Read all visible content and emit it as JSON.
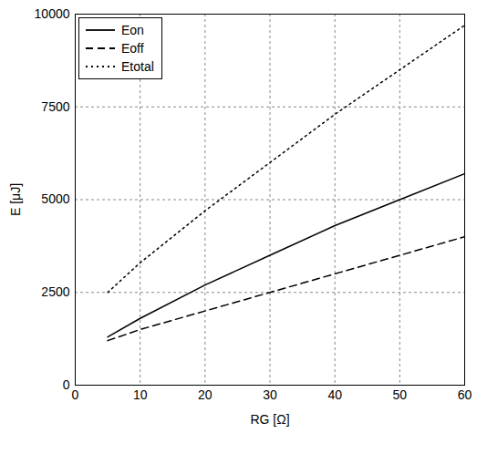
{
  "chart_data": {
    "type": "line",
    "x_label": "RG [Ω]",
    "y_label": "E [μJ]",
    "x": [
      5,
      10,
      20,
      30,
      40,
      50,
      60
    ],
    "series": [
      {
        "name": "Eon",
        "color": "#000000",
        "line_style": "solid",
        "values": [
          1300,
          1800,
          2700,
          3500,
          4300,
          5000,
          5700
        ]
      },
      {
        "name": "Eoff",
        "color": "#000000",
        "line_style": "dashed",
        "values": [
          1200,
          1500,
          2000,
          2500,
          3000,
          3500,
          4000
        ]
      },
      {
        "name": "Etotal",
        "color": "#000000",
        "line_style": "dotted",
        "values": [
          2500,
          3300,
          4700,
          6000,
          7300,
          8500,
          9700
        ]
      }
    ],
    "xlim": [
      0,
      60
    ],
    "xticks": [
      0,
      10,
      20,
      30,
      40,
      50,
      60
    ],
    "ylim": [
      0,
      10000
    ],
    "yticks": [
      0,
      2500,
      5000,
      7500,
      10000
    ],
    "grid": true,
    "legend": "top-left"
  }
}
